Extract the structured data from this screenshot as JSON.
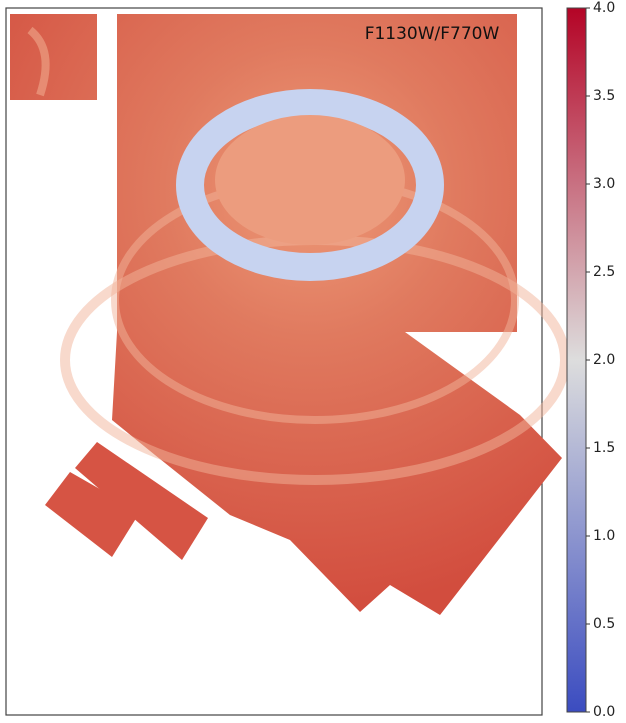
{
  "chart_data": {
    "type": "image",
    "title": "F1130W/F770W",
    "clim": [
      0,
      4
    ],
    "colormap": [
      "#3b4cc0",
      "#dddddd",
      "#b40426"
    ],
    "cticks": [
      {
        "value": 0,
        "label": "0.0"
      },
      {
        "value": 0.5,
        "label": "0.5"
      },
      {
        "value": 1,
        "label": "1.0"
      },
      {
        "value": 1.5,
        "label": "1.5"
      },
      {
        "value": 2,
        "label": "2.0"
      },
      {
        "value": 2.5,
        "label": "2.5"
      },
      {
        "value": 3,
        "label": "3.0"
      },
      {
        "value": 3.5,
        "label": "3.5"
      },
      {
        "value": 4,
        "label": "4.0"
      }
    ]
  }
}
